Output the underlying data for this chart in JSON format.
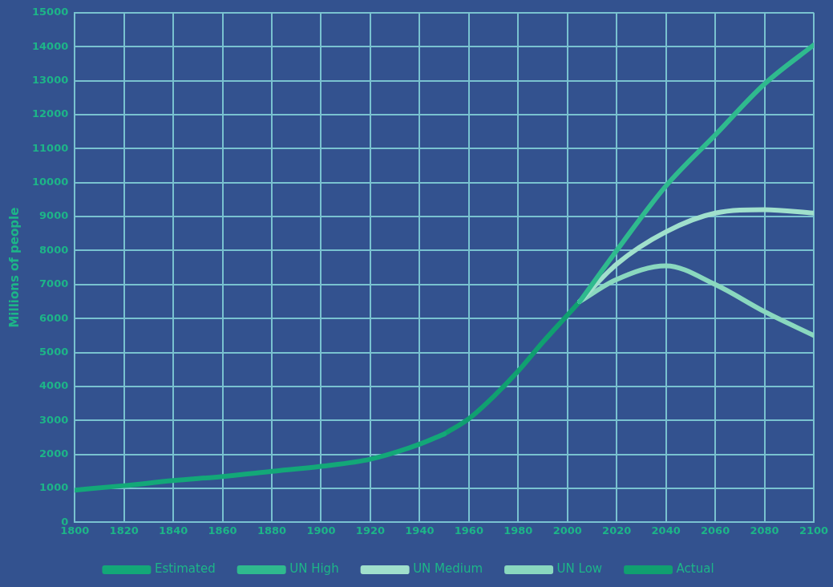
{
  "chart_data": {
    "type": "line",
    "ylabel": "Millions of people",
    "xlim": [
      1800,
      2100
    ],
    "xticks": [
      1800,
      1820,
      1840,
      1860,
      1880,
      1900,
      1920,
      1940,
      1960,
      1980,
      2000,
      2020,
      2040,
      2060,
      2080,
      2100
    ],
    "ylim": [
      0,
      15000
    ],
    "yticks": [
      0,
      1000,
      2000,
      3000,
      4000,
      5000,
      6000,
      7000,
      8000,
      9000,
      10000,
      11000,
      12000,
      13000,
      14000,
      15000
    ],
    "grid": true,
    "legend": "bottom",
    "marker": "none",
    "line_style": "solid",
    "series": [
      {
        "name": "Estimated",
        "color": "#13a878",
        "x": [
          1800,
          1820,
          1840,
          1860,
          1880,
          1900,
          1920,
          1940,
          1950
        ],
        "values": [
          950,
          1080,
          1230,
          1350,
          1500,
          1650,
          1860,
          2300,
          2600
        ]
      },
      {
        "name": "UN High",
        "color": "#2fba8e",
        "x": [
          2005,
          2020,
          2040,
          2060,
          2080,
          2100
        ],
        "values": [
          6500,
          8000,
          9900,
          11400,
          12900,
          14050
        ]
      },
      {
        "name": "UN Medium",
        "color": "#a0e0cc",
        "x": [
          2005,
          2020,
          2040,
          2060,
          2080,
          2100
        ],
        "values": [
          6500,
          7600,
          8550,
          9100,
          9200,
          9100
        ]
      },
      {
        "name": "UN Low",
        "color": "#8ad8bf",
        "x": [
          2005,
          2020,
          2040,
          2060,
          2080,
          2100
        ],
        "values": [
          6500,
          7150,
          7550,
          7000,
          6200,
          5500
        ]
      },
      {
        "name": "Actual",
        "color": "#10a070",
        "x": [
          1950,
          1960,
          1970,
          1980,
          1990,
          2000,
          2005
        ],
        "values": [
          2600,
          3050,
          3700,
          4450,
          5300,
          6100,
          6500
        ]
      }
    ]
  }
}
